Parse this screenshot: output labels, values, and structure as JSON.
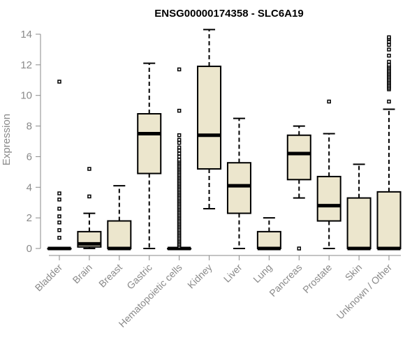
{
  "chart_data": {
    "type": "boxplot",
    "title": "ENSG00000174358 - SLC6A19",
    "xlabel": "",
    "ylabel": "Expression",
    "ylim": [
      0,
      14.5
    ],
    "yticks": [
      0,
      2,
      4,
      6,
      8,
      10,
      12,
      14
    ],
    "box_color": "#ece6cd",
    "line_color": "#000000",
    "axis_color": "#8a8a8a",
    "categories": [
      "Bladder",
      "Brain",
      "Breast",
      "Gastric",
      "Hematopoietic cells",
      "Kidney",
      "Liver",
      "Lung",
      "Pancreas",
      "Prostate",
      "Skin",
      "Unknown / Other"
    ],
    "boxes": [
      {
        "name": "Bladder",
        "min": 0,
        "q1": 0,
        "median": 0,
        "q3": 0,
        "max": 0,
        "outliers": [
          0.7,
          1.2,
          1.7,
          2.1,
          2.6,
          3.2,
          3.6,
          10.9
        ]
      },
      {
        "name": "Brain",
        "min": 0,
        "q1": 0.1,
        "median": 0.3,
        "q3": 1.1,
        "max": 2.3,
        "outliers": [
          3.4,
          5.2
        ]
      },
      {
        "name": "Breast",
        "min": 0,
        "q1": 0,
        "median": 0,
        "q3": 1.8,
        "max": 4.1,
        "outliers": []
      },
      {
        "name": "Gastric",
        "min": 0,
        "q1": 4.9,
        "median": 7.5,
        "q3": 8.8,
        "max": 12.1,
        "outliers": []
      },
      {
        "name": "Hematopoietic cells",
        "min": 0,
        "q1": 0,
        "median": 0,
        "q3": 0,
        "max": 0,
        "outliers": [
          0.1,
          0.2,
          0.3,
          0.4,
          0.5,
          0.6,
          0.7,
          0.8,
          0.9,
          1.0,
          1.1,
          1.2,
          1.3,
          1.4,
          1.5,
          1.6,
          1.7,
          1.8,
          1.9,
          2.0,
          2.1,
          2.2,
          2.3,
          2.4,
          2.5,
          2.6,
          2.7,
          2.8,
          2.9,
          3.0,
          3.1,
          3.2,
          3.3,
          3.4,
          3.5,
          3.6,
          3.7,
          3.8,
          3.9,
          4.0,
          4.1,
          4.2,
          4.3,
          4.4,
          4.5,
          4.6,
          4.7,
          4.8,
          4.9,
          5.0,
          5.1,
          5.2,
          5.3,
          5.4,
          5.5,
          5.6,
          5.7,
          5.8,
          6.0,
          6.2,
          6.4,
          6.6,
          6.9,
          7.1,
          7.4,
          9.0,
          11.7
        ]
      },
      {
        "name": "Kidney",
        "min": 2.6,
        "q1": 5.2,
        "median": 7.4,
        "q3": 11.9,
        "max": 14.3,
        "outliers": []
      },
      {
        "name": "Liver",
        "min": 0,
        "q1": 2.3,
        "median": 4.1,
        "q3": 5.6,
        "max": 8.5,
        "outliers": []
      },
      {
        "name": "Lung",
        "min": 0,
        "q1": 0,
        "median": 0,
        "q3": 1.1,
        "max": 2.0,
        "outliers": []
      },
      {
        "name": "Pancreas",
        "min": 3.3,
        "q1": 4.5,
        "median": 6.2,
        "q3": 7.4,
        "max": 8.0,
        "outliers": [
          0
        ]
      },
      {
        "name": "Prostate",
        "min": 0,
        "q1": 1.8,
        "median": 2.8,
        "q3": 4.7,
        "max": 7.5,
        "outliers": [
          9.6
        ]
      },
      {
        "name": "Skin",
        "min": 0,
        "q1": 0,
        "median": 0,
        "q3": 3.3,
        "max": 5.5,
        "outliers": []
      },
      {
        "name": "Unknown / Other",
        "min": 0,
        "q1": 0,
        "median": 0,
        "q3": 3.7,
        "max": 9.1,
        "outliers": [
          9.6,
          10.4,
          10.5,
          10.6,
          10.7,
          10.8,
          10.9,
          11.0,
          11.1,
          11.2,
          11.3,
          11.4,
          11.5,
          11.6,
          11.7,
          11.8,
          11.9,
          12.0,
          12.2,
          12.6,
          13.0,
          13.3,
          13.5,
          13.7,
          13.8
        ]
      }
    ]
  }
}
